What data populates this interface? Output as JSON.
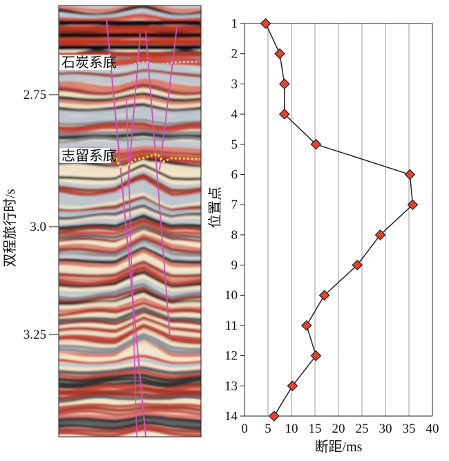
{
  "left_panel": {
    "ylabel": "双程旅行时/s",
    "yticks": [
      "2.75",
      "3.0",
      "3.25"
    ],
    "horizon_labels": [
      "石炭系底",
      "志留系底"
    ]
  },
  "chart_data": {
    "type": "line",
    "xlabel": "断距/ms",
    "ylabel": "位置点",
    "xlim": [
      0,
      40
    ],
    "ylim": [
      1,
      14
    ],
    "y_inverted": true,
    "grid": "vertical",
    "marker": "diamond",
    "marker_color": "#e8412b",
    "line_color": "#222222",
    "x_ticks": [
      "0",
      "5",
      "10",
      "15",
      "20",
      "25",
      "30",
      "35",
      "40"
    ],
    "y_ticks": [
      "1",
      "2",
      "3",
      "4",
      "5",
      "6",
      "7",
      "8",
      "9",
      "10",
      "11",
      "12",
      "13",
      "14"
    ],
    "points": [
      {
        "y": 1,
        "x": 4.5
      },
      {
        "y": 2,
        "x": 7.5
      },
      {
        "y": 3,
        "x": 8.5
      },
      {
        "y": 4,
        "x": 8.5
      },
      {
        "y": 5,
        "x": 15.2
      },
      {
        "y": 6,
        "x": 35.2
      },
      {
        "y": 7,
        "x": 35.8
      },
      {
        "y": 8,
        "x": 28.9
      },
      {
        "y": 9,
        "x": 24.0
      },
      {
        "y": 10,
        "x": 17.0
      },
      {
        "y": 11,
        "x": 13.2
      },
      {
        "y": 12,
        "x": 15.2
      },
      {
        "y": 13,
        "x": 10.2
      },
      {
        "y": 14,
        "x": 6.3
      }
    ]
  }
}
